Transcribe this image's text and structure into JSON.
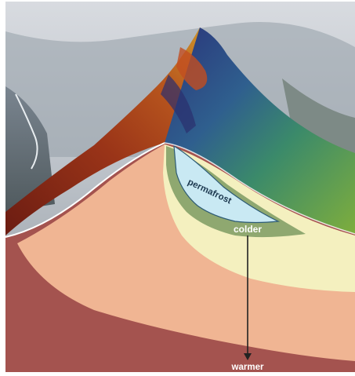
{
  "labels": {
    "permafrost": "permafrost",
    "colder": "colder",
    "warmer": "warmer"
  },
  "colors": {
    "outer_ground": "#a4534f",
    "warm_layer": "#f0b593",
    "cool_layer": "#f4f0bf",
    "cold_layer": "#8fa870",
    "permafrost": "#c9e9f3",
    "sky": "#d6d9dd",
    "ridge_red": "#8b2b18",
    "ridge_blue": "#2d3d8c",
    "ridge_green": "#5c8e35"
  }
}
